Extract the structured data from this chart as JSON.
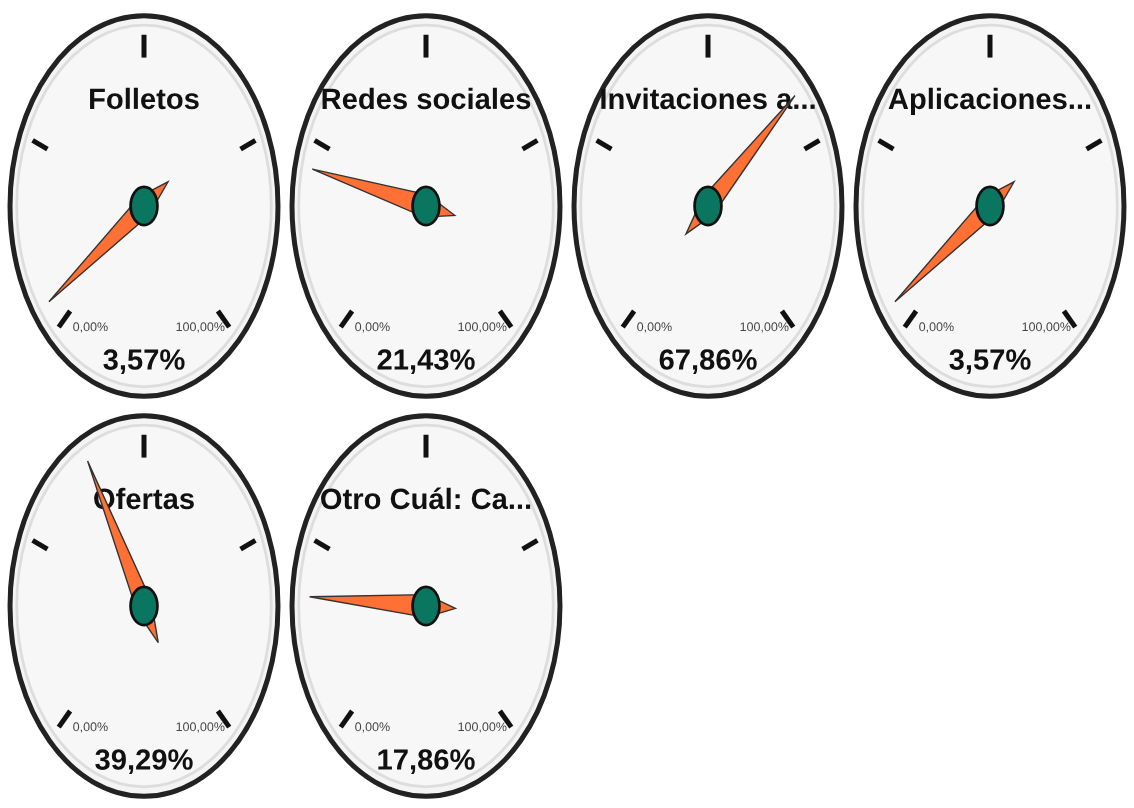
{
  "chart_data": [
    {
      "type": "other",
      "title": "Folletos",
      "values": [
        3.57
      ],
      "value_labels": [
        "3,57%"
      ],
      "annotations": [
        "0,00%",
        "100,00%"
      ]
    },
    {
      "type": "other",
      "title": "Redes sociales",
      "values": [
        21.43
      ],
      "value_labels": [
        "21,43%"
      ],
      "annotations": [
        "0,00%",
        "100,00%"
      ]
    },
    {
      "type": "other",
      "title": "Invitaciones a...",
      "values": [
        67.86
      ],
      "value_labels": [
        "67,86%"
      ],
      "annotations": [
        "0,00%",
        "100,00%"
      ]
    },
    {
      "type": "other",
      "title": "Aplicaciones...",
      "values": [
        3.57
      ],
      "value_labels": [
        "3,57%"
      ],
      "annotations": [
        "0,00%",
        "100,00%"
      ]
    },
    {
      "type": "other",
      "title": "Ofertas",
      "values": [
        39.29
      ],
      "value_labels": [
        "39,29%"
      ],
      "annotations": [
        "0,00%",
        "100,00%"
      ]
    },
    {
      "type": "other",
      "title": "Otro Cuál: Ca...",
      "values": [
        17.86
      ],
      "value_labels": [
        "17,86%"
      ],
      "annotations": [
        "0,00%",
        "100,00%"
      ]
    }
  ]
}
